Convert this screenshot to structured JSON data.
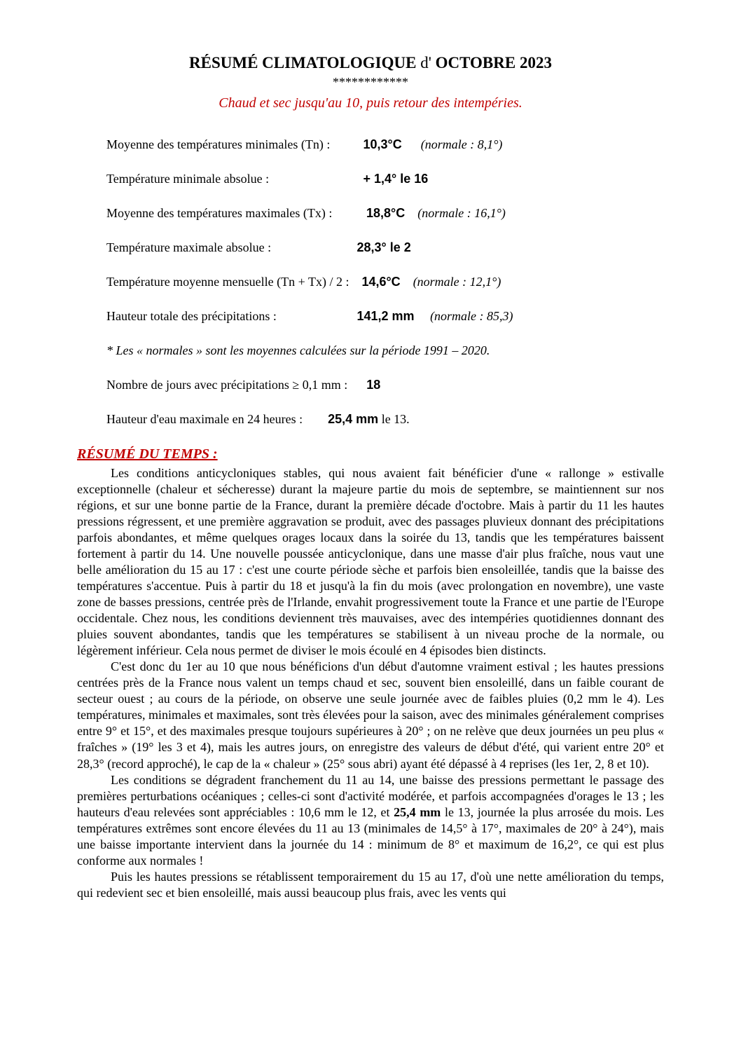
{
  "title": {
    "prefix_bold": "RÉSUMÉ  CLIMATOLOGIQUE",
    "middle_plain": "  d'  ",
    "suffix_bold": "OCTOBRE  2023",
    "asterisks": "************",
    "subtitle": "Chaud et sec jusqu'au 10,  puis retour des intempéries."
  },
  "stats": {
    "tn_mean_label": "Moyenne des températures minimales (Tn) :",
    "tn_mean_value": "10,3°C",
    "tn_mean_normale": "(normale :  8,1°)",
    "tmin_abs_label": "Température minimale absolue :",
    "tmin_abs_value": "+ 1,4°  le  16",
    "tx_mean_label": "Moyenne des températures maximales  (Tx) :",
    "tx_mean_value": "18,8°C",
    "tx_mean_normale": "(normale :  16,1°)",
    "tmax_abs_label": "Température maximale absolue :",
    "tmax_abs_value": "28,3°  le  2",
    "tmoy_label": "Température moyenne mensuelle  (Tn + Tx) / 2 :",
    "tmoy_value": "14,6°C",
    "tmoy_normale": "(normale :  12,1°)",
    "precip_label": "Hauteur totale des précipitations :",
    "precip_value": "141,2 mm",
    "precip_normale": "(normale :  85,3)",
    "normales_note": "* Les « normales » sont les moyennes calculées sur la période 1991 – 2020.",
    "days_precip_label": "Nombre de jours avec précipitations  ≥ 0,1 mm :",
    "days_precip_value": "18",
    "hmax24_label": "Hauteur d'eau maximale en 24 heures :",
    "hmax24_value": "25,4 mm",
    "hmax24_suffix": "  le  13."
  },
  "section_header": "RÉSUMÉ DU TEMPS :",
  "paragraphs": {
    "p1": "Les conditions anticycloniques stables, qui nous avaient fait bénéficier d'une « rallonge » estivalle exceptionnelle  (chaleur et sécheresse)  durant la majeure partie du mois de septembre, se maintiennent sur nos régions, et sur une bonne partie de la France, durant la première décade d'octobre. Mais à partir du 11 les hautes pressions régressent,  et une première aggravation se produit, avec des passages pluvieux  donnant des précipitations  parfois abondantes,  et même quelques orages locaux dans la soirée du 13, tandis que les températures baissent fortement à partir du 14. Une nouvelle poussée anticyclonique, dans une masse d'air plus fraîche,  nous vaut une belle amélioration du 15 au 17 : c'est une courte période sèche et parfois bien ensoleillée,  tandis que la baisse  des températures s'accentue.  Puis à partir du 18 et jusqu'à la fin du mois (avec prolongation en novembre), une vaste zone de basses pressions, centrée près de l'Irlande, envahit progressivement toute la France et une partie de l'Europe occidentale.  Chez nous, les conditions deviennent très mauvaises, avec des intempéries quotidiennes donnant des pluies souvent abondantes, tandis que les températures se stabilisent à un niveau proche de la normale,  ou légèrement inférieur.  Cela nous permet  de diviser le mois écoulé en 4 épisodes bien distincts.",
    "p2": "C'est donc du 1er au 10 que nous bénéficions d'un début d'automne vraiment estival ; les hautes pressions centrées  près de la France  nous valent un temps chaud et sec,  souvent bien ensoleillé, dans un faible courant de secteur ouest ; au cours de la période, on observe une seule journée avec de faibles pluies (0,2 mm le 4). Les températures, minimales et maximales, sont très élevées pour la saison, avec des minimales généralement comprises entre 9° et 15°, et des maximales presque toujours supérieures à 20° ; on ne relève que deux journées un peu plus « fraîches » (19° les 3 et 4), mais les autres jours, on enregistre des valeurs de début d'été, qui varient entre 20° et 28,3° (record approché), le cap de la « chaleur » (25° sous abri) ayant été dépassé à 4 reprises (les 1er, 2, 8 et 10).",
    "p3_a": "Les conditions se dégradent franchement du 11 au 14, une baisse des pressions permettant le passage des premières perturbations océaniques ;  celles-ci sont d'activité modérée,  et parfois accompagnées d'orages le 13 ; les hauteurs d'eau relevées sont appréciables : 10,6 mm le 12, et ",
    "p3_bold": "25,4 mm",
    "p3_b": "  le 13, journée la plus arrosée du mois. Les températures extrêmes sont encore élevées du 11 au 13 (minimales de 14,5° à 17°, maximales de 20° à 24°),  mais une baisse importante intervient dans la journée du 14 : minimum de 8° et maximum de 16,2°, ce qui est plus conforme aux normales !",
    "p4": "Puis les hautes pressions se rétablissent  temporairement du 15 au 17,  d'où une nette amélioration du temps, qui redevient sec et bien ensoleillé, mais aussi beaucoup plus frais, avec les vents qui"
  },
  "colors": {
    "accent": "#c00000",
    "text": "#000000",
    "background": "#ffffff"
  }
}
